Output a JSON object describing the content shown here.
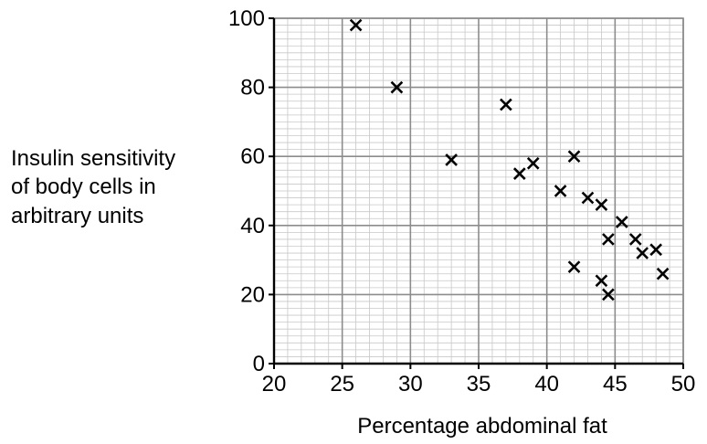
{
  "chart_data": {
    "type": "scatter",
    "xlabel": "Percentage abdominal fat",
    "ylabel_lines": [
      "Insulin sensitivity",
      "of body cells in",
      "arbitrary units"
    ],
    "xlim": [
      20,
      50
    ],
    "ylim": [
      0,
      100
    ],
    "x_ticks": [
      20,
      25,
      30,
      35,
      40,
      45,
      50
    ],
    "y_ticks": [
      0,
      20,
      40,
      60,
      80,
      100
    ],
    "x_tick_labels": [
      "20",
      "25",
      "30",
      "35",
      "40",
      "45",
      "50"
    ],
    "y_tick_labels": [
      "0",
      "20",
      "40",
      "60",
      "80",
      "100"
    ],
    "x_minor_step": 1,
    "y_minor_step": 2,
    "grid": true,
    "marker": "x",
    "colors": {
      "points": "#000000",
      "major_grid": "#8c8c8c",
      "minor_grid": "#c8c8c8",
      "axis": "#000000"
    },
    "points": [
      {
        "x": 26,
        "y": 98
      },
      {
        "x": 29,
        "y": 80
      },
      {
        "x": 33,
        "y": 59
      },
      {
        "x": 37,
        "y": 75
      },
      {
        "x": 38,
        "y": 55
      },
      {
        "x": 39,
        "y": 58
      },
      {
        "x": 41,
        "y": 50
      },
      {
        "x": 42,
        "y": 60
      },
      {
        "x": 42,
        "y": 28
      },
      {
        "x": 43,
        "y": 48
      },
      {
        "x": 44,
        "y": 46
      },
      {
        "x": 44,
        "y": 24
      },
      {
        "x": 44.5,
        "y": 36
      },
      {
        "x": 44.5,
        "y": 20
      },
      {
        "x": 45.5,
        "y": 41
      },
      {
        "x": 46.5,
        "y": 36
      },
      {
        "x": 47,
        "y": 32
      },
      {
        "x": 48,
        "y": 33
      },
      {
        "x": 48.5,
        "y": 26
      }
    ]
  }
}
